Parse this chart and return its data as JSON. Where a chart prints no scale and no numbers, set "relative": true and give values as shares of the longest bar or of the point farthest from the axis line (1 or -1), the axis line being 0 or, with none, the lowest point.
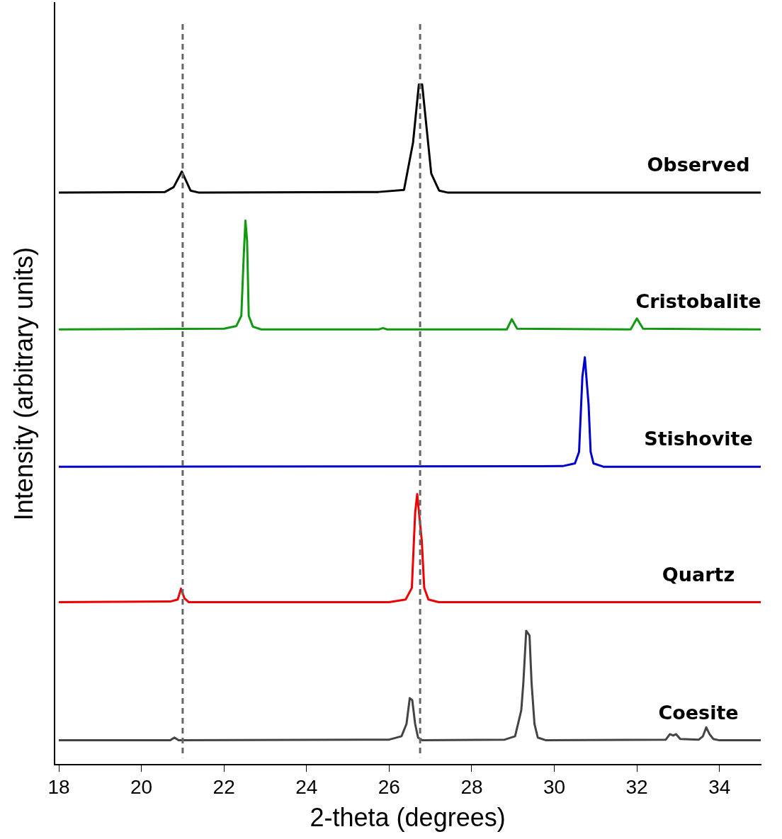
{
  "chart_data": {
    "type": "line",
    "xlabel": "2-theta (degrees)",
    "ylabel": "Intensity (arbitrary units)",
    "relative": true,
    "xlim": [
      17.9,
      35
    ],
    "xticks": [
      18,
      20,
      22,
      24,
      26,
      28,
      30,
      32,
      34
    ],
    "grid": false,
    "legend": false,
    "marker": "none",
    "line_style": "solid",
    "ref_lines": [
      {
        "axis": "x",
        "value": 21.0,
        "color": "#666666",
        "line_style": "dashed"
      },
      {
        "axis": "x",
        "value": 26.75,
        "color": "#666666",
        "line_style": "dashed"
      }
    ],
    "series": [
      {
        "name": "Observed",
        "color": "#000000",
        "x": [
          18.0,
          20.57,
          20.78,
          20.98,
          21.19,
          21.4,
          25.74,
          26.36,
          26.58,
          26.72,
          26.8,
          27.02,
          27.21,
          27.43,
          35.0
        ],
        "values": [
          0.841,
          0.842,
          0.849,
          0.872,
          0.844,
          0.841,
          0.842,
          0.845,
          0.915,
          1.0,
          1.0,
          0.869,
          0.844,
          0.841,
          0.841
        ]
      },
      {
        "name": "Cristobalite",
        "color": "#119911",
        "x": [
          18.0,
          22.0,
          22.3,
          22.42,
          22.48,
          22.52,
          22.56,
          22.6,
          22.7,
          22.9,
          25.75,
          25.85,
          25.95,
          28.85,
          28.97,
          29.1,
          31.85,
          32.0,
          32.15,
          35.0
        ],
        "values": [
          0.64,
          0.641,
          0.645,
          0.66,
          0.75,
          0.8,
          0.77,
          0.66,
          0.644,
          0.64,
          0.64,
          0.642,
          0.64,
          0.64,
          0.655,
          0.641,
          0.64,
          0.656,
          0.641,
          0.64
        ]
      },
      {
        "name": "Stishovite",
        "color": "#0000cc",
        "x": [
          18.0,
          30.2,
          30.5,
          30.6,
          30.68,
          30.74,
          30.79,
          30.83,
          30.88,
          30.95,
          31.2,
          35.0
        ],
        "values": [
          0.438,
          0.439,
          0.443,
          0.46,
          0.57,
          0.599,
          0.56,
          0.53,
          0.46,
          0.443,
          0.438,
          0.438
        ]
      },
      {
        "name": "Quartz",
        "color": "#ee0000",
        "x": [
          18.0,
          20.7,
          20.88,
          20.96,
          21.04,
          21.15,
          26.0,
          26.4,
          26.55,
          26.63,
          26.68,
          26.74,
          26.79,
          26.85,
          26.95,
          27.2,
          35.0
        ],
        "values": [
          0.239,
          0.24,
          0.243,
          0.259,
          0.245,
          0.239,
          0.239,
          0.243,
          0.26,
          0.37,
          0.398,
          0.36,
          0.33,
          0.26,
          0.243,
          0.239,
          0.239
        ]
      },
      {
        "name": "Coesite",
        "color": "#444444",
        "x": [
          18.0,
          20.7,
          20.8,
          20.9,
          26.0,
          26.3,
          26.42,
          26.5,
          26.56,
          26.63,
          26.7,
          26.8,
          28.8,
          29.05,
          29.2,
          29.25,
          29.32,
          29.4,
          29.45,
          29.52,
          29.6,
          29.8,
          32.7,
          32.8,
          32.88,
          32.95,
          33.05,
          33.5,
          33.6,
          33.68,
          33.76,
          33.85,
          34.0,
          35.0
        ],
        "values": [
          0.036,
          0.036,
          0.04,
          0.036,
          0.037,
          0.042,
          0.06,
          0.098,
          0.095,
          0.06,
          0.04,
          0.036,
          0.037,
          0.042,
          0.08,
          0.12,
          0.197,
          0.19,
          0.12,
          0.06,
          0.04,
          0.036,
          0.037,
          0.045,
          0.043,
          0.045,
          0.038,
          0.037,
          0.042,
          0.055,
          0.045,
          0.038,
          0.036,
          0.036
        ]
      }
    ]
  }
}
